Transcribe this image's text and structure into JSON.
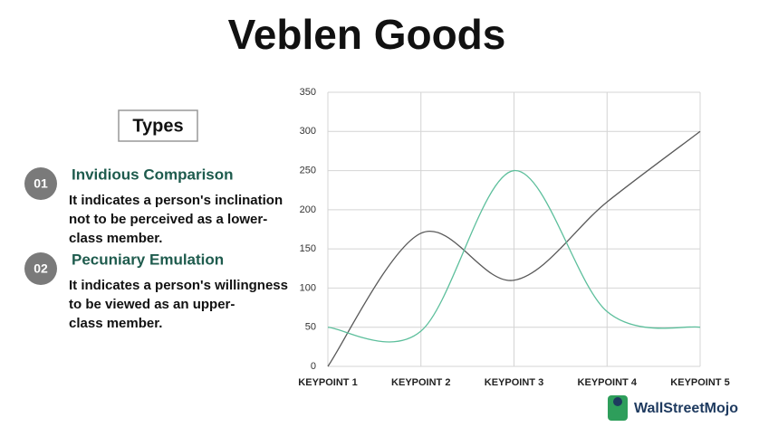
{
  "header": {
    "title": "Veblen Goods"
  },
  "types": {
    "heading": "Types",
    "items": [
      {
        "number": "01",
        "title": "Invidious Comparison",
        "lines": [
          "It indicates a person's inclination",
          "not to be perceived as a lower-",
          "class member."
        ]
      },
      {
        "number": "02",
        "title": "Pecuniary Emulation",
        "lines": [
          "It indicates a person's willingness",
          "to be viewed as an upper-",
          "class member."
        ]
      }
    ]
  },
  "logo": {
    "text": "WallStreetMojo"
  },
  "chart_data": {
    "type": "line",
    "categories": [
      "KEYPOINT 1",
      "KEYPOINT 2",
      "KEYPOINT 3",
      "KEYPOINT 4",
      "KEYPOINT 5"
    ],
    "series": [
      {
        "color": "#595959",
        "values": [
          0,
          170,
          110,
          210,
          300
        ]
      },
      {
        "color": "#5dbf9c",
        "values": [
          50,
          45,
          250,
          70,
          50
        ]
      }
    ],
    "ylim": [
      0,
      350
    ],
    "yticks": [
      0,
      50,
      100,
      150,
      200,
      250,
      300,
      350
    ],
    "grid": true,
    "smooth": true
  }
}
